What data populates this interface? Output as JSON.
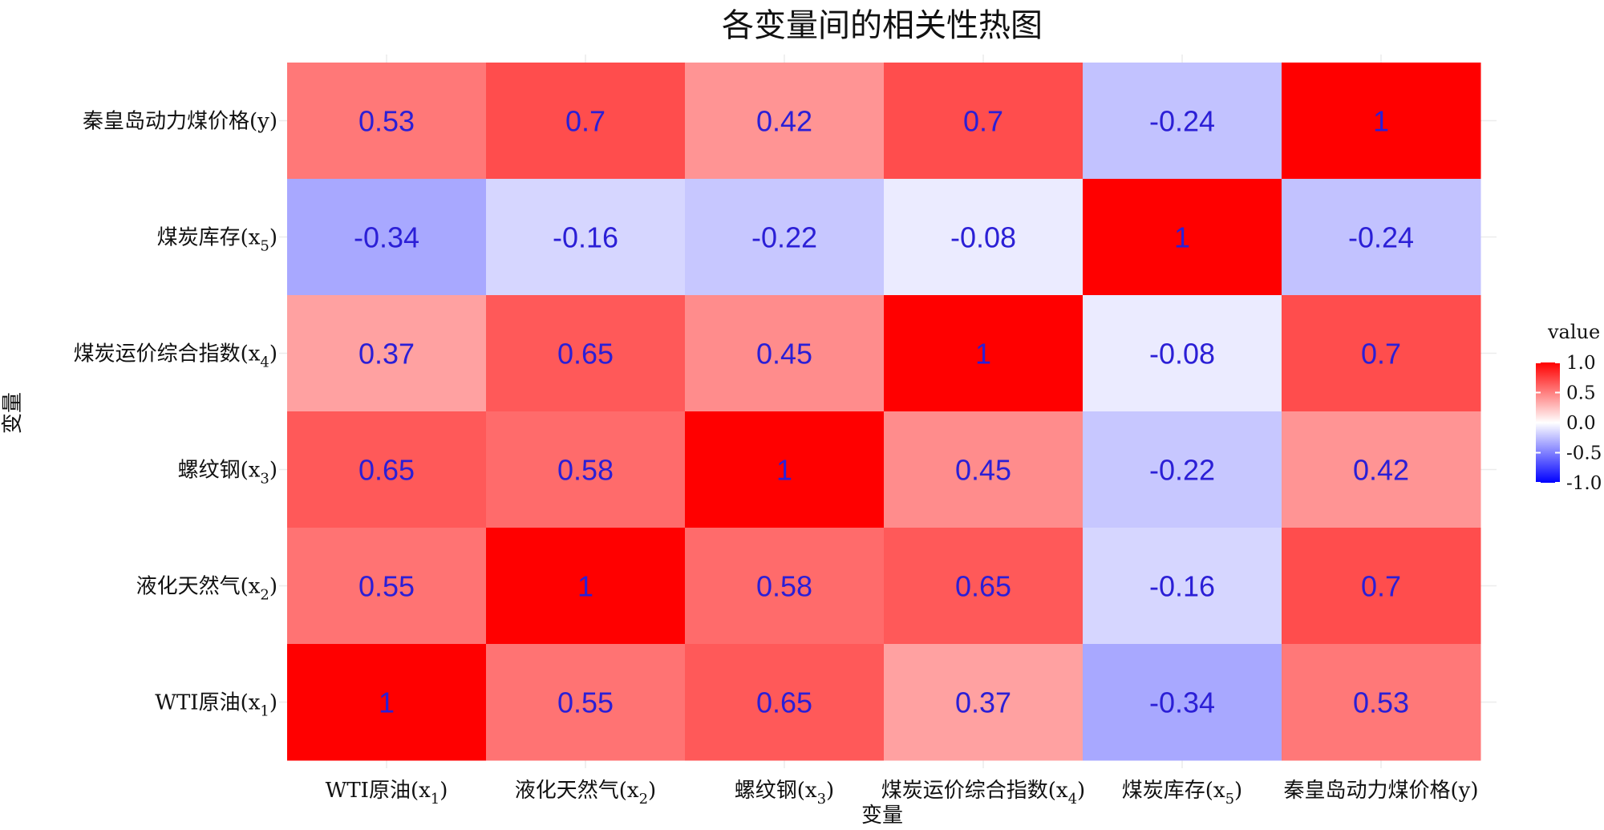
{
  "chart_data": {
    "type": "heatmap",
    "title": "各变量间的相关性热图",
    "xlabel": "变量",
    "ylabel": "变量",
    "x_categories": [
      {
        "base": "WTI原油(x",
        "sub": "1",
        "close": ")"
      },
      {
        "base": "液化天然气(x",
        "sub": "2",
        "close": ")"
      },
      {
        "base": "螺纹钢(x",
        "sub": "3",
        "close": ")"
      },
      {
        "base": "煤炭运价综合指数(x",
        "sub": "4",
        "close": ")"
      },
      {
        "base": "煤炭库存(x",
        "sub": "5",
        "close": ")"
      },
      {
        "base": "秦皇岛动力煤价格(y)",
        "sub": "",
        "close": ""
      }
    ],
    "y_categories_top_to_bottom": [
      {
        "base": "秦皇岛动力煤价格(y)",
        "sub": "",
        "close": ""
      },
      {
        "base": "煤炭库存(x",
        "sub": "5",
        "close": ")"
      },
      {
        "base": "煤炭运价综合指数(x",
        "sub": "4",
        "close": ")"
      },
      {
        "base": "螺纹钢(x",
        "sub": "3",
        "close": ")"
      },
      {
        "base": "液化天然气(x",
        "sub": "2",
        "close": ")"
      },
      {
        "base": "WTI原油(x",
        "sub": "1",
        "close": ")"
      }
    ],
    "values_top_to_bottom": [
      [
        0.53,
        0.7,
        0.42,
        0.7,
        -0.24,
        1
      ],
      [
        -0.34,
        -0.16,
        -0.22,
        -0.08,
        1,
        -0.24
      ],
      [
        0.37,
        0.65,
        0.45,
        1,
        -0.08,
        0.7
      ],
      [
        0.65,
        0.58,
        1,
        0.45,
        -0.22,
        0.42
      ],
      [
        0.55,
        1,
        0.58,
        0.65,
        -0.16,
        0.7
      ],
      [
        1,
        0.55,
        0.65,
        0.37,
        -0.34,
        0.53
      ]
    ],
    "value_labels_top_to_bottom": [
      [
        "0.53",
        "0.7",
        "0.42",
        "0.7",
        "-0.24",
        "1"
      ],
      [
        "-0.34",
        "-0.16",
        "-0.22",
        "-0.08",
        "1",
        "-0.24"
      ],
      [
        "0.37",
        "0.65",
        "0.45",
        "1",
        "-0.08",
        "0.7"
      ],
      [
        "0.65",
        "0.58",
        "1",
        "0.45",
        "-0.22",
        "0.42"
      ],
      [
        "0.55",
        "1",
        "0.58",
        "0.65",
        "-0.16",
        "0.7"
      ],
      [
        "1",
        "0.55",
        "0.65",
        "0.37",
        "-0.34",
        "0.53"
      ]
    ],
    "color_scale": {
      "low_color": "#0000ff",
      "mid_color": "#ffffff",
      "high_color": "#ff0000",
      "limits": [
        -1,
        1
      ]
    },
    "legend": {
      "title": "value",
      "placement": "right",
      "ticks": [
        "1.0",
        "0.5",
        "0.0",
        "-0.5",
        "-1.0"
      ],
      "tick_values": [
        1,
        0.5,
        0,
        -0.5,
        -1
      ]
    },
    "cell_label_color": "#2b1fd6",
    "grid": true
  }
}
